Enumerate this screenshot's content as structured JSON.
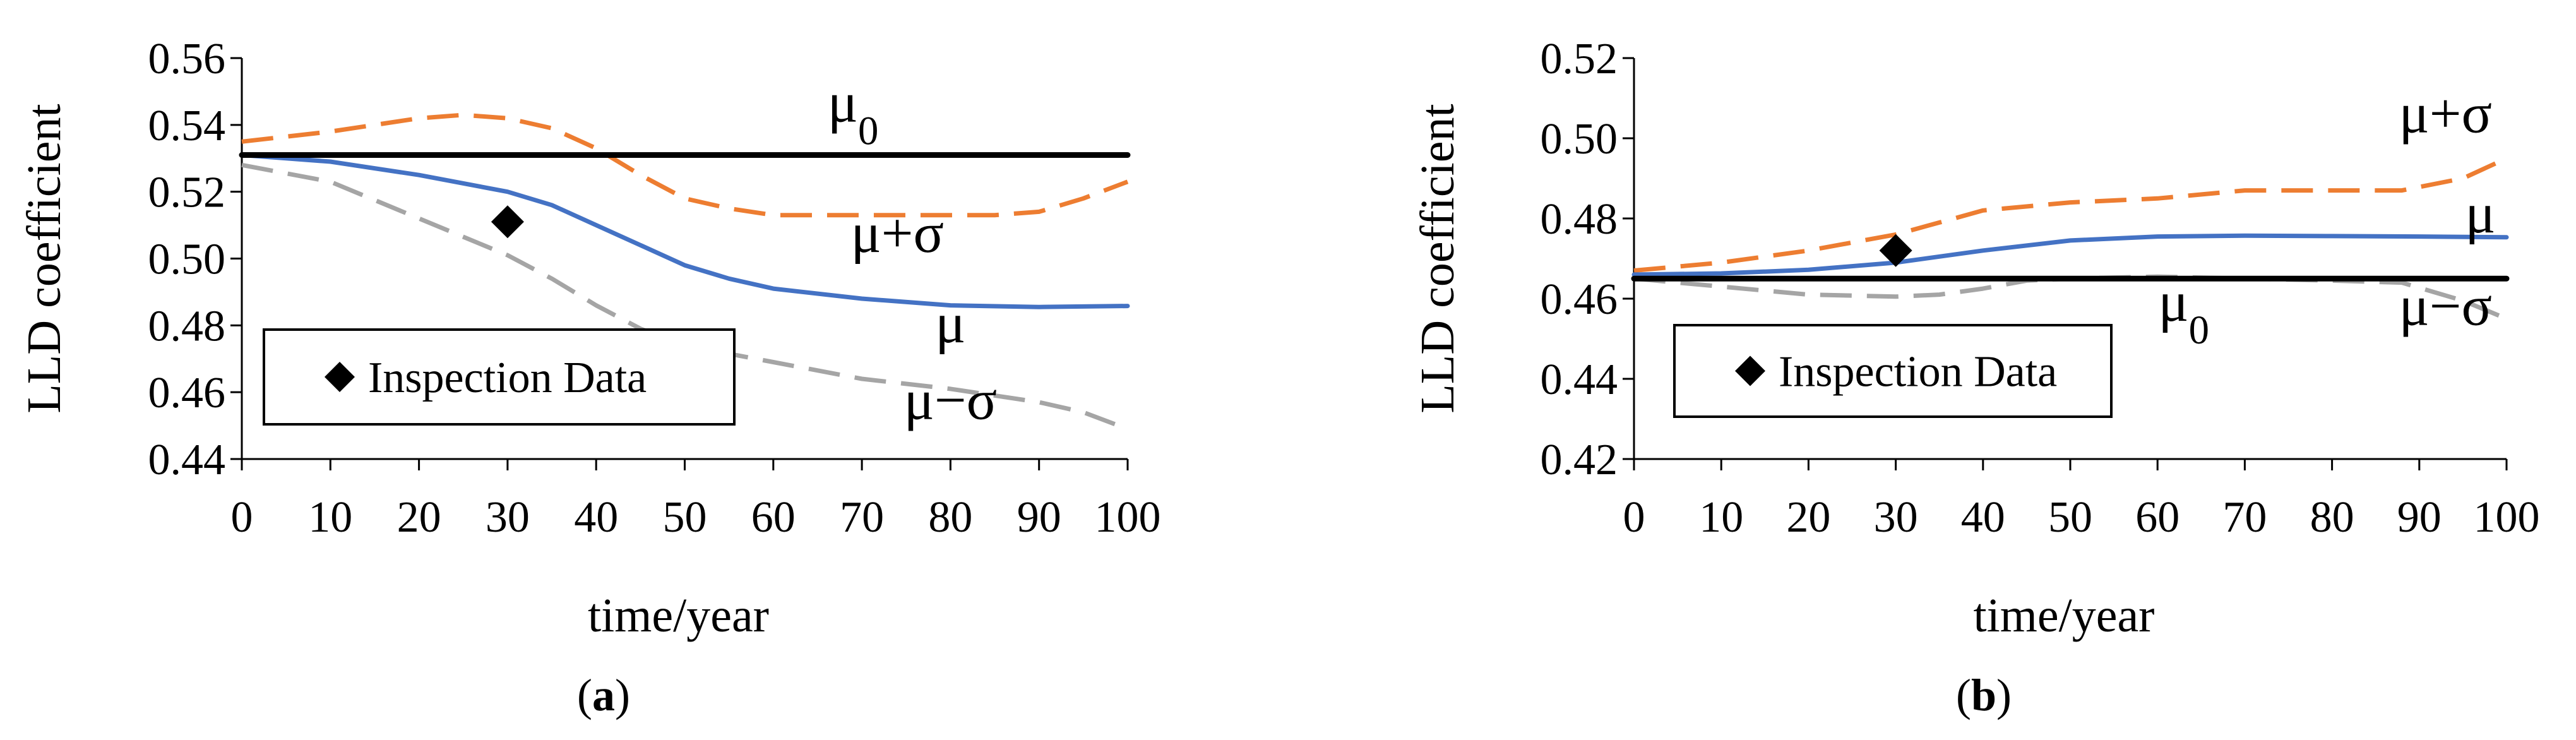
{
  "chart_data": [
    {
      "panel": "(a)",
      "panel_letter": "a",
      "type": "line",
      "xlabel": "time/year",
      "ylabel": "LLD coefficient",
      "xlim": [
        0,
        100
      ],
      "ylim": [
        0.44,
        0.56
      ],
      "x_ticks": [
        0,
        10,
        20,
        30,
        40,
        50,
        60,
        70,
        80,
        90,
        100
      ],
      "y_ticks": [
        0.44,
        0.46,
        0.48,
        0.5,
        0.52,
        0.54,
        0.56
      ],
      "y_tick_labels": [
        "0.44",
        "0.46",
        "0.48",
        "0.50",
        "0.52",
        "0.54",
        "0.56"
      ],
      "grid": false,
      "series": [
        {
          "name": "μ0",
          "color": "#000000",
          "style": "solid",
          "points": [
            [
              0,
              0.531
            ],
            [
              100,
              0.531
            ]
          ]
        },
        {
          "name": "μ+σ",
          "color": "#ed7d31",
          "style": "dashed",
          "points": [
            [
              0,
              0.535
            ],
            [
              10,
              0.538
            ],
            [
              20,
              0.542
            ],
            [
              25,
              0.543
            ],
            [
              30,
              0.542
            ],
            [
              35,
              0.539
            ],
            [
              40,
              0.533
            ],
            [
              45,
              0.525
            ],
            [
              50,
              0.518
            ],
            [
              55,
              0.515
            ],
            [
              60,
              0.513
            ],
            [
              70,
              0.513
            ],
            [
              80,
              0.513
            ],
            [
              85,
              0.513
            ],
            [
              90,
              0.514
            ],
            [
              95,
              0.518
            ],
            [
              100,
              0.523
            ]
          ]
        },
        {
          "name": "μ",
          "color": "#4472c4",
          "style": "solid",
          "points": [
            [
              0,
              0.531
            ],
            [
              10,
              0.529
            ],
            [
              20,
              0.525
            ],
            [
              30,
              0.52
            ],
            [
              35,
              0.516
            ],
            [
              40,
              0.51
            ],
            [
              45,
              0.504
            ],
            [
              50,
              0.498
            ],
            [
              55,
              0.494
            ],
            [
              60,
              0.491
            ],
            [
              70,
              0.488
            ],
            [
              80,
              0.486
            ],
            [
              90,
              0.4855
            ],
            [
              100,
              0.4858
            ]
          ]
        },
        {
          "name": "μ−σ",
          "color": "#a5a5a5",
          "style": "dashed",
          "points": [
            [
              0,
              0.528
            ],
            [
              10,
              0.523
            ],
            [
              20,
              0.512
            ],
            [
              30,
              0.501
            ],
            [
              35,
              0.494
            ],
            [
              40,
              0.486
            ],
            [
              45,
              0.479
            ],
            [
              50,
              0.474
            ],
            [
              60,
              0.469
            ],
            [
              70,
              0.464
            ],
            [
              80,
              0.461
            ],
            [
              90,
              0.457
            ],
            [
              95,
              0.454
            ],
            [
              100,
              0.449
            ]
          ]
        }
      ],
      "inspection_point": {
        "x": 30,
        "y": 0.511
      },
      "curve_labels": [
        {
          "text": "μ0",
          "x": 69,
          "y": 0.541
        },
        {
          "text": "μ+σ",
          "x": 74,
          "y": 0.502
        },
        {
          "text": "μ",
          "x": 80,
          "y": 0.475
        },
        {
          "text": "μ−σ",
          "x": 80,
          "y": 0.452
        }
      ],
      "legend": {
        "label": "Inspection Data",
        "position": "bottom-left"
      }
    },
    {
      "panel": "(b)",
      "panel_letter": "b",
      "type": "line",
      "xlabel": "time/year",
      "ylabel": "LLD coefficient",
      "xlim": [
        0,
        100
      ],
      "ylim": [
        0.42,
        0.52
      ],
      "x_ticks": [
        0,
        10,
        20,
        30,
        40,
        50,
        60,
        70,
        80,
        90,
        100
      ],
      "y_ticks": [
        0.42,
        0.44,
        0.46,
        0.48,
        0.5,
        0.52
      ],
      "y_tick_labels": [
        "0.42",
        "0.44",
        "0.46",
        "0.48",
        "0.50",
        "0.52"
      ],
      "grid": false,
      "series": [
        {
          "name": "μ0",
          "color": "#000000",
          "style": "solid",
          "points": [
            [
              0,
              0.465
            ],
            [
              100,
              0.465
            ]
          ]
        },
        {
          "name": "μ+σ",
          "color": "#ed7d31",
          "style": "dashed",
          "points": [
            [
              0,
              0.467
            ],
            [
              10,
              0.469
            ],
            [
              20,
              0.472
            ],
            [
              30,
              0.476
            ],
            [
              35,
              0.479
            ],
            [
              40,
              0.482
            ],
            [
              50,
              0.484
            ],
            [
              60,
              0.485
            ],
            [
              70,
              0.487
            ],
            [
              80,
              0.487
            ],
            [
              88,
              0.487
            ],
            [
              95,
              0.49
            ],
            [
              100,
              0.495
            ]
          ]
        },
        {
          "name": "μ",
          "color": "#4472c4",
          "style": "solid",
          "points": [
            [
              0,
              0.466
            ],
            [
              10,
              0.4663
            ],
            [
              20,
              0.4672
            ],
            [
              30,
              0.469
            ],
            [
              40,
              0.472
            ],
            [
              50,
              0.4745
            ],
            [
              60,
              0.4755
            ],
            [
              70,
              0.4757
            ],
            [
              80,
              0.4756
            ],
            [
              90,
              0.4755
            ],
            [
              100,
              0.4753
            ]
          ]
        },
        {
          "name": "μ−σ",
          "color": "#a5a5a5",
          "style": "dashed",
          "points": [
            [
              0,
              0.465
            ],
            [
              10,
              0.463
            ],
            [
              20,
              0.461
            ],
            [
              30,
              0.4605
            ],
            [
              35,
              0.461
            ],
            [
              40,
              0.4625
            ],
            [
              45,
              0.4645
            ],
            [
              50,
              0.465
            ],
            [
              60,
              0.4655
            ],
            [
              70,
              0.465
            ],
            [
              80,
              0.4645
            ],
            [
              88,
              0.464
            ],
            [
              95,
              0.4595
            ],
            [
              100,
              0.455
            ]
          ]
        }
      ],
      "inspection_point": {
        "x": 30,
        "y": 0.472
      },
      "curve_labels": [
        {
          "text": "μ+σ",
          "x": 93,
          "y": 0.5015
        },
        {
          "text": "μ",
          "x": 97,
          "y": 0.4765
        },
        {
          "text": "μ0",
          "x": 63,
          "y": 0.4545
        },
        {
          "text": "μ−σ",
          "x": 93,
          "y": 0.4535
        }
      ],
      "legend": {
        "label": "Inspection Data",
        "position": "bottom-left"
      }
    }
  ]
}
